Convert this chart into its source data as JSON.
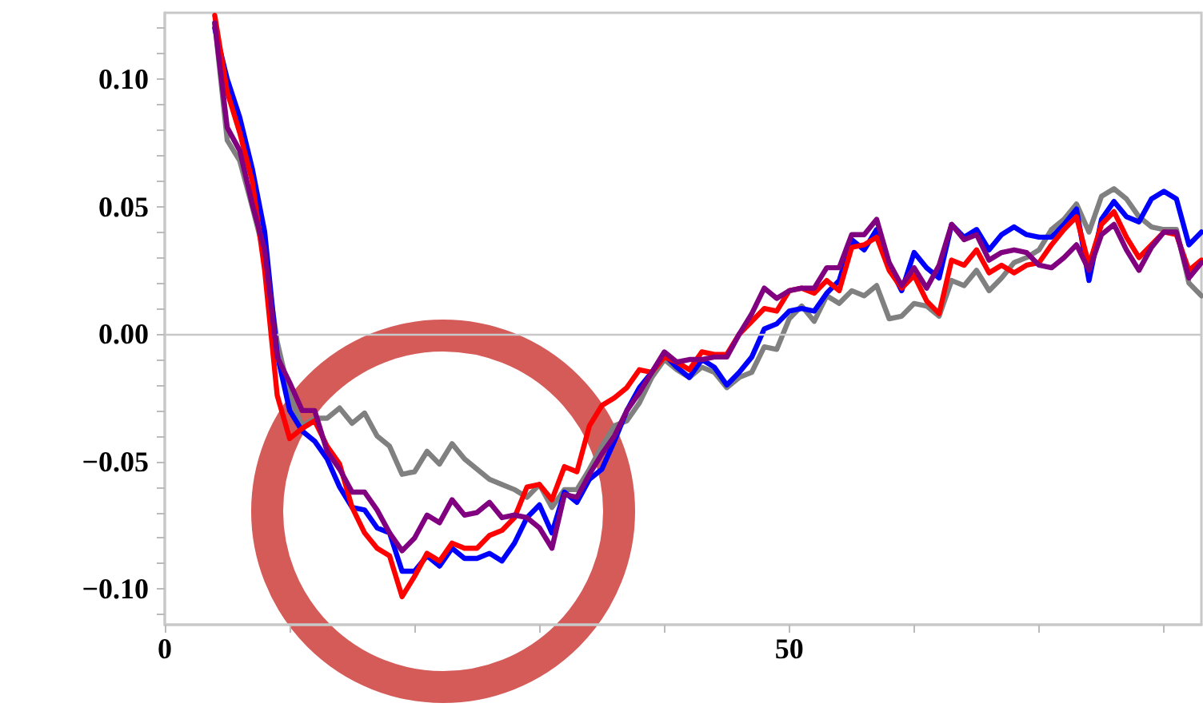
{
  "chart_data": {
    "type": "line",
    "x": [
      4,
      5,
      6,
      7,
      8,
      9,
      10,
      11,
      12,
      13,
      14,
      15,
      16,
      17,
      18,
      19,
      20,
      21,
      22,
      23,
      24,
      25,
      26,
      27,
      28,
      29,
      30,
      31,
      32,
      33,
      34,
      35,
      36,
      37,
      38,
      39,
      40,
      41,
      42,
      43,
      44,
      45,
      46,
      47,
      48,
      49,
      50,
      51,
      52,
      53,
      54,
      55,
      56,
      57,
      58,
      59,
      60,
      61,
      62,
      63,
      64,
      65,
      66,
      67,
      68,
      69,
      70,
      71,
      72,
      73,
      74,
      75,
      76,
      77,
      78,
      79,
      80,
      81,
      82,
      83
    ],
    "series": [
      {
        "color": "#808080",
        "values": [
          0.122,
          0.076,
          0.068,
          0.05,
          0.031,
          -0.003,
          -0.024,
          -0.036,
          -0.033,
          -0.033,
          -0.029,
          -0.035,
          -0.031,
          -0.04,
          -0.044,
          -0.055,
          -0.054,
          -0.046,
          -0.051,
          -0.043,
          -0.049,
          -0.053,
          -0.057,
          -0.059,
          -0.061,
          -0.064,
          -0.059,
          -0.068,
          -0.061,
          -0.061,
          -0.053,
          -0.044,
          -0.036,
          -0.034,
          -0.027,
          -0.017,
          -0.01,
          -0.014,
          -0.017,
          -0.013,
          -0.015,
          -0.021,
          -0.017,
          -0.015,
          -0.005,
          -0.006,
          0.006,
          0.011,
          0.005,
          0.015,
          0.012,
          0.017,
          0.015,
          0.019,
          0.006,
          0.007,
          0.012,
          0.011,
          0.007,
          0.021,
          0.019,
          0.025,
          0.017,
          0.022,
          0.028,
          0.03,
          0.033,
          0.041,
          0.045,
          0.051,
          0.04,
          0.054,
          0.057,
          0.053,
          0.046,
          0.042,
          0.041,
          0.041,
          0.02,
          0.015
        ]
      },
      {
        "color": "#0000ff",
        "values": [
          0.12,
          0.1,
          0.085,
          0.065,
          0.04,
          -0.008,
          -0.03,
          -0.038,
          -0.042,
          -0.049,
          -0.06,
          -0.068,
          -0.069,
          -0.076,
          -0.078,
          -0.093,
          -0.093,
          -0.087,
          -0.091,
          -0.084,
          -0.088,
          -0.088,
          -0.086,
          -0.089,
          -0.082,
          -0.072,
          -0.067,
          -0.078,
          -0.062,
          -0.066,
          -0.057,
          -0.053,
          -0.042,
          -0.03,
          -0.021,
          -0.015,
          -0.008,
          -0.013,
          -0.017,
          -0.01,
          -0.013,
          -0.02,
          -0.015,
          -0.009,
          0.002,
          0.004,
          0.009,
          0.01,
          0.009,
          0.016,
          0.021,
          0.037,
          0.033,
          0.041,
          0.027,
          0.017,
          0.032,
          0.026,
          0.022,
          0.043,
          0.038,
          0.041,
          0.033,
          0.039,
          0.042,
          0.039,
          0.038,
          0.038,
          0.043,
          0.049,
          0.021,
          0.045,
          0.052,
          0.046,
          0.044,
          0.053,
          0.056,
          0.053,
          0.035,
          0.04
        ]
      },
      {
        "color": "#ff0000",
        "values": [
          0.125,
          0.095,
          0.079,
          0.06,
          0.025,
          -0.024,
          -0.041,
          -0.037,
          -0.034,
          -0.044,
          -0.051,
          -0.068,
          -0.078,
          -0.084,
          -0.087,
          -0.103,
          -0.095,
          -0.086,
          -0.089,
          -0.082,
          -0.084,
          -0.084,
          -0.079,
          -0.077,
          -0.072,
          -0.06,
          -0.059,
          -0.065,
          -0.052,
          -0.054,
          -0.036,
          -0.028,
          -0.025,
          -0.021,
          -0.014,
          -0.015,
          -0.009,
          -0.011,
          -0.014,
          -0.007,
          -0.008,
          -0.008,
          0,
          0.005,
          0.01,
          0.009,
          0.017,
          0.018,
          0.016,
          0.021,
          0.017,
          0.034,
          0.035,
          0.038,
          0.025,
          0.018,
          0.023,
          0.013,
          0.008,
          0.029,
          0.027,
          0.033,
          0.024,
          0.027,
          0.024,
          0.027,
          0.028,
          0.035,
          0.041,
          0.046,
          0.027,
          0.043,
          0.048,
          0.038,
          0.03,
          0.035,
          0.04,
          0.039,
          0.025,
          0.029
        ]
      },
      {
        "color": "#800080",
        "values": [
          0.122,
          0.081,
          0.072,
          0.051,
          0.033,
          -0.009,
          -0.019,
          -0.03,
          -0.03,
          -0.046,
          -0.053,
          -0.062,
          -0.062,
          -0.069,
          -0.078,
          -0.085,
          -0.08,
          -0.071,
          -0.074,
          -0.065,
          -0.071,
          -0.07,
          -0.066,
          -0.072,
          -0.071,
          -0.072,
          -0.076,
          -0.084,
          -0.063,
          -0.064,
          -0.055,
          -0.047,
          -0.04,
          -0.03,
          -0.023,
          -0.015,
          -0.007,
          -0.011,
          -0.01,
          -0.01,
          -0.009,
          -0.009,
          0,
          0.008,
          0.018,
          0.014,
          0.017,
          0.018,
          0.018,
          0.026,
          0.026,
          0.039,
          0.039,
          0.045,
          0.028,
          0.019,
          0.026,
          0.018,
          0.027,
          0.043,
          0.037,
          0.039,
          0.029,
          0.032,
          0.033,
          0.032,
          0.027,
          0.026,
          0.03,
          0.035,
          0.025,
          0.039,
          0.043,
          0.033,
          0.025,
          0.034,
          0.04,
          0.04,
          0.022,
          0.028
        ]
      }
    ],
    "xlim": [
      0,
      83
    ],
    "xticks": [
      0,
      {
        "value": 10,
        "label": null
      },
      {
        "value": 20,
        "label": null
      },
      {
        "value": 30,
        "label": null
      },
      {
        "value": 40,
        "label": null
      },
      50,
      {
        "value": 60,
        "label": null
      },
      {
        "value": 70,
        "label": null
      },
      {
        "value": 80,
        "label": null
      }
    ],
    "ylim": [
      -0.114,
      0.126
    ],
    "yticks": [
      {
        "value": -0.11,
        "label": null
      },
      {
        "value": -0.1,
        "label": "−0.10"
      },
      {
        "value": -0.09,
        "label": null
      },
      {
        "value": -0.08,
        "label": null
      },
      {
        "value": -0.07,
        "label": null
      },
      {
        "value": -0.06,
        "label": null
      },
      {
        "value": -0.05,
        "label": "−0.05"
      },
      {
        "value": -0.04,
        "label": null
      },
      {
        "value": -0.03,
        "label": null
      },
      {
        "value": -0.02,
        "label": null
      },
      {
        "value": -0.01,
        "label": null
      },
      {
        "value": 0,
        "label": "0.00"
      },
      {
        "value": 0.01,
        "label": null
      },
      {
        "value": 0.02,
        "label": null
      },
      {
        "value": 0.03,
        "label": null
      },
      {
        "value": 0.04,
        "label": null
      },
      {
        "value": 0.05,
        "label": "0.05"
      },
      {
        "value": 0.06,
        "label": null
      },
      {
        "value": 0.07,
        "label": null
      },
      {
        "value": 0.08,
        "label": null
      },
      {
        "value": 0.09,
        "label": null
      },
      {
        "value": 0.1,
        "label": "0.10"
      },
      {
        "value": 0.11,
        "label": null
      },
      {
        "value": 0.12,
        "label": null
      }
    ],
    "ref_lines": [
      {
        "axis": "y",
        "value": 0,
        "color": "#c8c8c8"
      }
    ],
    "marker": "none",
    "line_style": "solid"
  }
}
